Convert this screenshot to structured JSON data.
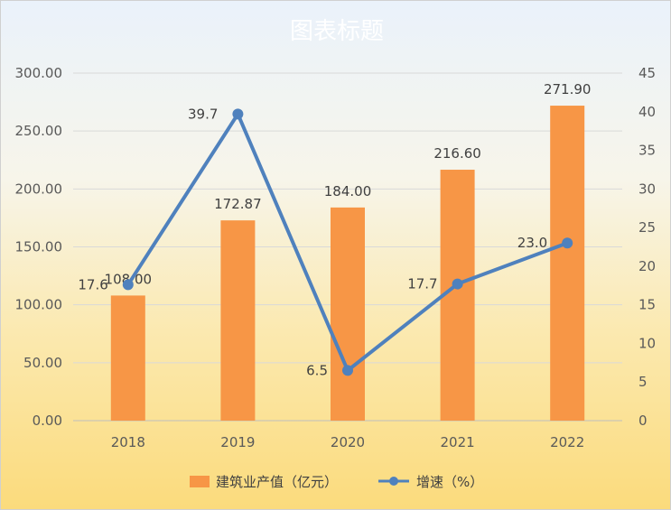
{
  "chart_data": {
    "type": "bar",
    "title": "图表标题",
    "categories": [
      "2018",
      "2019",
      "2020",
      "2021",
      "2022"
    ],
    "series": [
      {
        "name": "建筑业产值（亿元）",
        "type": "bar",
        "axis": "left",
        "values": [
          108.0,
          172.87,
          184.0,
          216.6,
          271.9
        ],
        "labels": [
          "108.00",
          "172.87",
          "184.00",
          "216.60",
          "271.90"
        ],
        "color": "#f79646"
      },
      {
        "name": "增速（%）",
        "type": "line",
        "axis": "right",
        "values": [
          17.6,
          39.7,
          6.5,
          17.7,
          23.0
        ],
        "labels": [
          "17.6",
          "39.7",
          "6.5",
          "17.7",
          "23.0"
        ],
        "color": "#4f81bd"
      }
    ],
    "y_left": {
      "min": 0,
      "max": 300,
      "step": 50,
      "ticks": [
        "0.00",
        "50.00",
        "100.00",
        "150.00",
        "200.00",
        "250.00",
        "300.00"
      ]
    },
    "y_right": {
      "min": 0,
      "max": 45,
      "step": 5,
      "ticks": [
        "0",
        "5",
        "10",
        "15",
        "20",
        "25",
        "30",
        "35",
        "40",
        "45"
      ]
    },
    "grid": true,
    "legend": "bottom"
  }
}
